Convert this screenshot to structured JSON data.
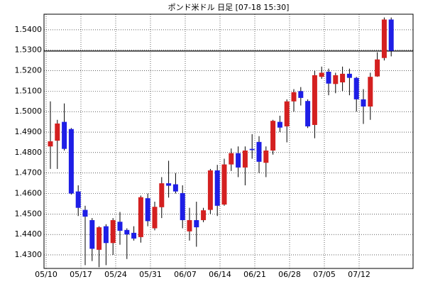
{
  "chart_data": {
    "type": "candlestick",
    "title": "ポンド米ドル 日足 [07-18 15:30]",
    "categories": [
      "05/10",
      null,
      null,
      null,
      null,
      "05/17",
      null,
      null,
      null,
      null,
      "05/24",
      null,
      null,
      null,
      null,
      "05/31",
      null,
      null,
      null,
      null,
      "06/07",
      null,
      null,
      null,
      null,
      "06/14",
      null,
      null,
      null,
      null,
      "06/21",
      null,
      null,
      null,
      null,
      "06/28",
      null,
      null,
      null,
      null,
      "07/05",
      null,
      null,
      null,
      null,
      "07/12",
      null,
      null,
      null,
      null
    ],
    "series": [
      {
        "up_color": "#d42020",
        "down_color": "#1e1ee6",
        "open": [
          1.483,
          1.4858,
          1.495,
          1.4915,
          1.461,
          1.452,
          1.447,
          1.4325,
          1.444,
          1.4358,
          1.4462,
          1.4422,
          1.4408,
          1.4387,
          1.4577,
          1.443,
          1.4533,
          1.465,
          1.4645,
          1.4602,
          1.4415,
          1.447,
          1.447,
          1.452,
          1.4713,
          1.4546,
          1.4742,
          1.4797,
          1.4727,
          1.4818,
          1.4852,
          1.475,
          1.481,
          1.495,
          1.4928,
          1.505,
          1.51,
          1.5052,
          1.4935,
          1.517,
          1.5195,
          1.5135,
          1.5143,
          1.5185,
          1.5165,
          1.506,
          1.5025,
          1.5172,
          1.5262,
          1.545
        ],
        "high": [
          1.505,
          1.496,
          1.504,
          1.492,
          1.464,
          1.454,
          1.448,
          1.444,
          1.445,
          1.448,
          1.451,
          1.443,
          1.444,
          1.459,
          1.46,
          1.456,
          1.468,
          1.476,
          1.47,
          1.464,
          1.453,
          1.456,
          1.453,
          1.472,
          1.474,
          1.477,
          1.482,
          1.483,
          1.483,
          1.489,
          1.488,
          1.483,
          1.496,
          1.498,
          1.506,
          1.511,
          1.512,
          1.506,
          1.52,
          1.522,
          1.521,
          1.519,
          1.522,
          1.521,
          1.517,
          1.511,
          1.519,
          1.529,
          1.546,
          1.546
        ],
        "low": [
          1.472,
          1.472,
          1.481,
          1.4595,
          1.449,
          1.425,
          1.427,
          1.424,
          1.425,
          1.43,
          1.435,
          1.428,
          1.437,
          1.436,
          1.444,
          1.442,
          1.448,
          1.458,
          1.46,
          1.443,
          1.437,
          1.434,
          1.446,
          1.45,
          1.449,
          1.454,
          1.471,
          1.468,
          1.464,
          1.477,
          1.47,
          1.468,
          1.479,
          1.49,
          1.485,
          1.5,
          1.503,
          1.492,
          1.487,
          1.516,
          1.508,
          1.509,
          1.51,
          1.508,
          1.5,
          1.494,
          1.496,
          1.517,
          1.525,
          1.527
        ],
        "close": [
          1.4855,
          1.4942,
          1.4818,
          1.46,
          1.453,
          1.4487,
          1.433,
          1.4435,
          1.4358,
          1.447,
          1.4418,
          1.44,
          1.438,
          1.4582,
          1.4465,
          1.4535,
          1.465,
          1.4638,
          1.461,
          1.447,
          1.447,
          1.4435,
          1.4518,
          1.4713,
          1.454,
          1.4742,
          1.4797,
          1.4727,
          1.481,
          1.4812,
          1.4755,
          1.481,
          1.4955,
          1.4922,
          1.505,
          1.5095,
          1.5067,
          1.4928,
          1.5178,
          1.519,
          1.5137,
          1.5178,
          1.5185,
          1.5165,
          1.506,
          1.5025,
          1.517,
          1.5255,
          1.545,
          1.5297
        ]
      }
    ],
    "hline": 1.5296,
    "ylim": [
      1.4234,
      1.5476
    ],
    "yticks": [
      {
        "value": 1.43,
        "label": "1.4300"
      },
      {
        "value": 1.44,
        "label": "1.4400"
      },
      {
        "value": 1.45,
        "label": "1.4500"
      },
      {
        "value": 1.46,
        "label": "1.4600"
      },
      {
        "value": 1.47,
        "label": "1.4700"
      },
      {
        "value": 1.48,
        "label": "1.4800"
      },
      {
        "value": 1.49,
        "label": "1.4900"
      },
      {
        "value": 1.5,
        "label": "1.5000"
      },
      {
        "value": 1.51,
        "label": "1.5100"
      },
      {
        "value": 1.52,
        "label": "1.5200"
      },
      {
        "value": 1.53,
        "label": "1.5300"
      },
      {
        "value": 1.54,
        "label": "1.5400"
      }
    ],
    "grid": true
  }
}
